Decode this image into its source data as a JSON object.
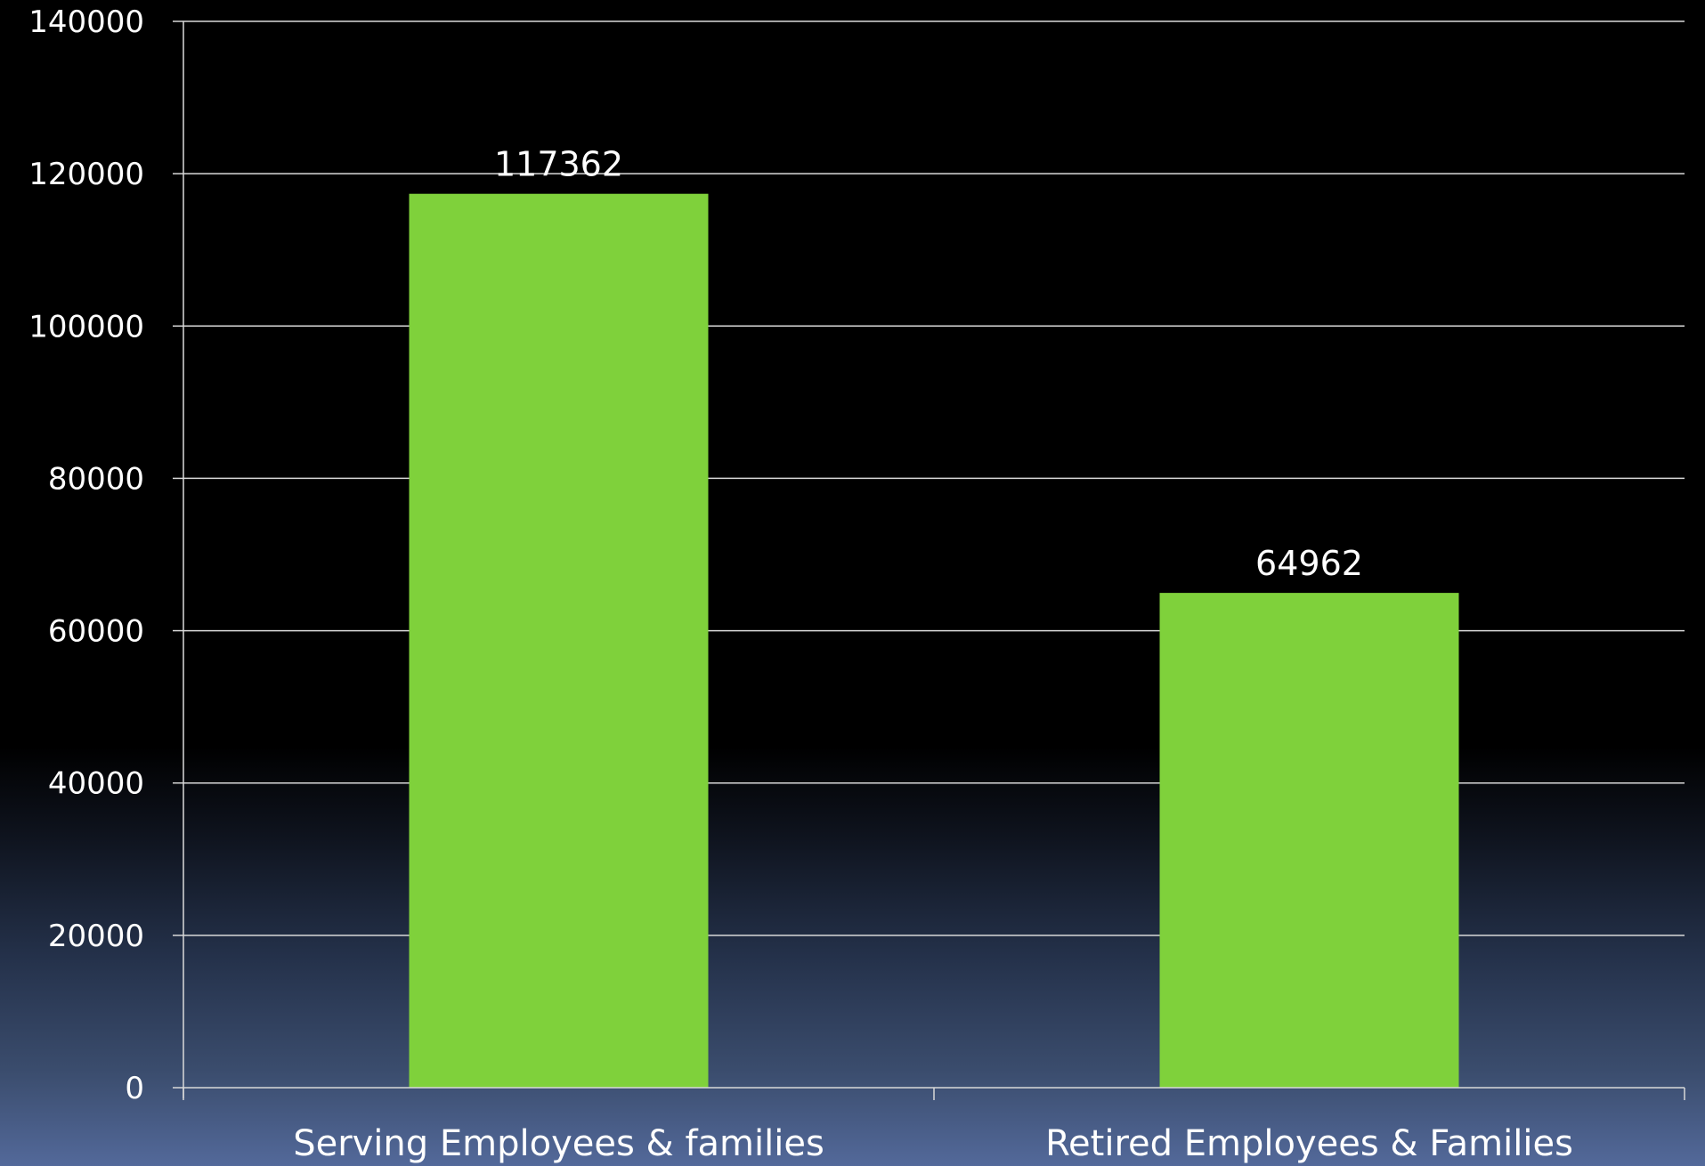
{
  "chart_data": {
    "type": "bar",
    "categories": [
      "Serving Employees & families",
      "Retired Employees & Families"
    ],
    "values": [
      117362,
      64962
    ],
    "data_labels": [
      "117362",
      "64962"
    ],
    "yticks": [
      "0",
      "20000",
      "40000",
      "60000",
      "80000",
      "100000",
      "120000",
      "140000"
    ],
    "ylim": [
      0,
      140000
    ],
    "grid": true,
    "legend": "none"
  },
  "colors": {
    "bar": "#7fd13b",
    "grid": "#d9d9d9",
    "axis": "#d9d9d9",
    "text": "#ffffff"
  }
}
